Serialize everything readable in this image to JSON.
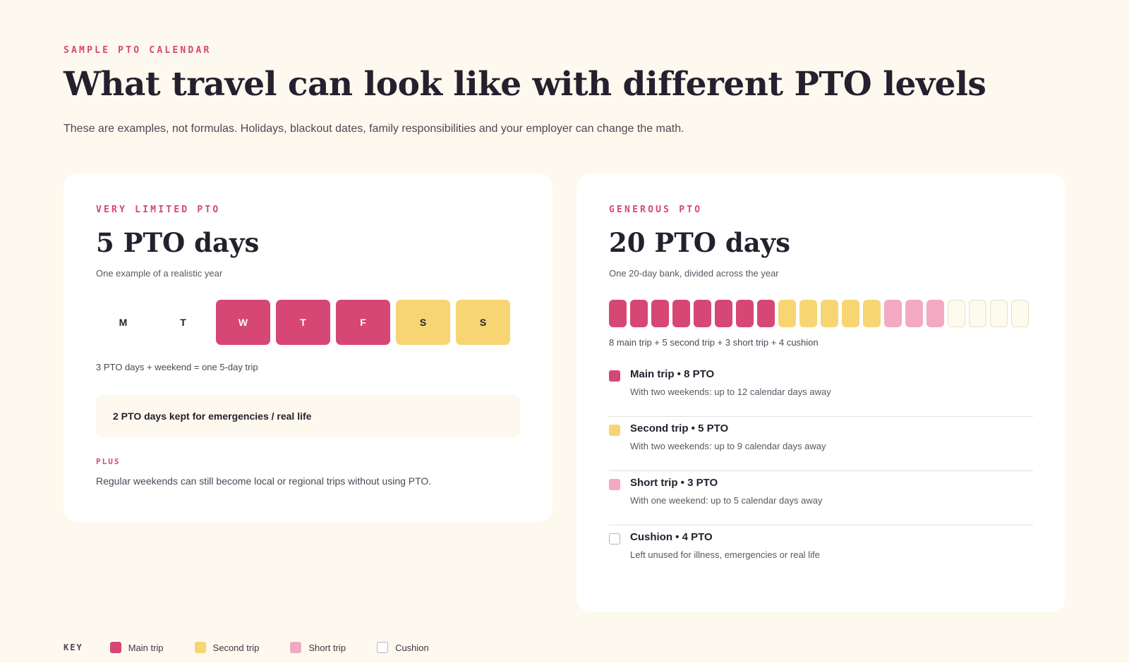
{
  "header": {
    "eyebrow": "SAMPLE PTO CALENDAR",
    "title": "What travel can look like with different PTO levels",
    "subtitle": "These are examples, not formulas. Holidays, blackout dates, family responsibilities and your employer can change the math."
  },
  "limited": {
    "eyebrow": "VERY LIMITED PTO",
    "title": "5 PTO days",
    "subtitle": "One example of a realistic year",
    "week": [
      {
        "label": "M",
        "type": "workday"
      },
      {
        "label": "T",
        "type": "workday"
      },
      {
        "label": "W",
        "type": "pto"
      },
      {
        "label": "T",
        "type": "pto"
      },
      {
        "label": "F",
        "type": "pto"
      },
      {
        "label": "S",
        "type": "weekend"
      },
      {
        "label": "S",
        "type": "weekend"
      }
    ],
    "week_note": "3 PTO days + weekend = one 5-day trip",
    "kept_note": "2 PTO days kept for emergencies / real life",
    "plus_label": "PLUS",
    "plus_text": "Regular weekends can still become local or regional trips without using PTO."
  },
  "generous": {
    "eyebrow": "GENEROUS PTO",
    "title": "20 PTO days",
    "subtitle": "One 20-day bank, divided across the year",
    "bank": {
      "main": 8,
      "second": 5,
      "short": 3,
      "cushion": 4
    },
    "bank_note": "8 main trip  +  5 second trip  +  3 short trip  +  4 cushion",
    "trips": [
      {
        "type": "main",
        "title": "Main trip • 8 PTO",
        "desc": "With two weekends: up to 12 calendar days away"
      },
      {
        "type": "second",
        "title": "Second trip • 5 PTO",
        "desc": "With two weekends: up to 9 calendar days away"
      },
      {
        "type": "short",
        "title": "Short trip • 3 PTO",
        "desc": "With one weekend: up to 5 calendar days away"
      },
      {
        "type": "cushion",
        "title": "Cushion • 4 PTO",
        "desc": "Left unused for illness, emergencies or real life"
      }
    ]
  },
  "key": {
    "label": "KEY",
    "items": [
      {
        "type": "main",
        "label": "Main trip"
      },
      {
        "type": "second",
        "label": "Second trip"
      },
      {
        "type": "short",
        "label": "Short trip"
      },
      {
        "type": "cushion",
        "label": "Cushion"
      }
    ]
  },
  "colors": {
    "main": "#d64775",
    "second": "#f6d572",
    "short": "#f2a9c1",
    "cushion": "#fdfaee",
    "background": "#fef9ee"
  }
}
